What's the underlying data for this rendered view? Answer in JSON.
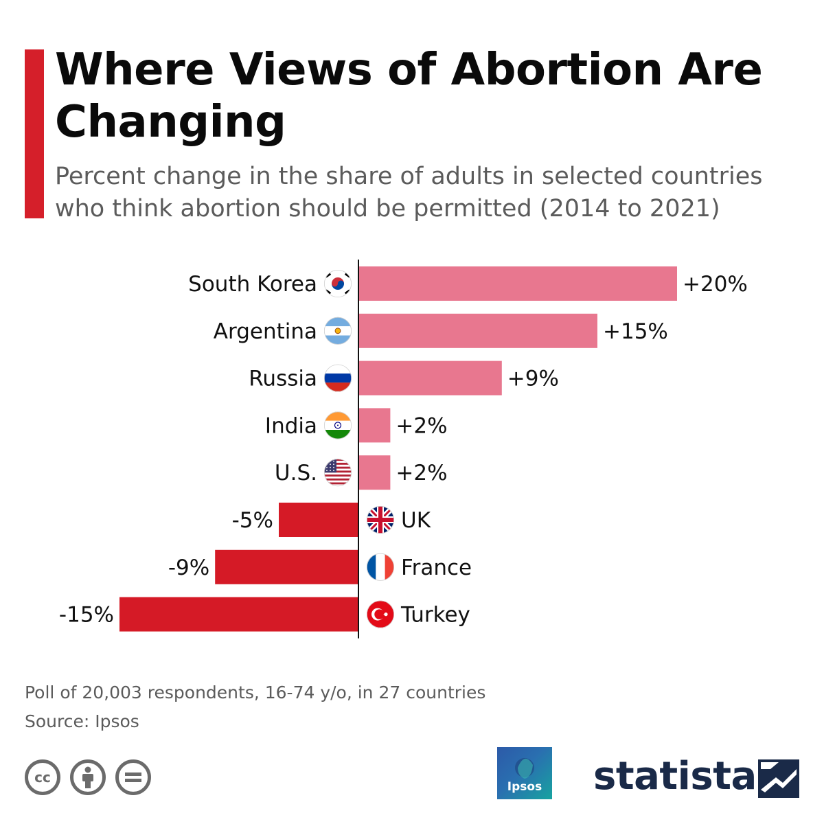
{
  "title": "Where Views of Abortion Are Changing",
  "subtitle": "Percent change in the share of adults in selected countries who think abortion should be permitted (2014 to 2021)",
  "chart_data": {
    "type": "bar",
    "orientation": "horizontal",
    "categories": [
      "South Korea",
      "Argentina",
      "Russia",
      "India",
      "U.S.",
      "UK",
      "France",
      "Turkey"
    ],
    "values": [
      20,
      15,
      9,
      2,
      2,
      -5,
      -9,
      -15
    ],
    "value_labels": [
      "+20%",
      "+15%",
      "+9%",
      "+2%",
      "+2%",
      "-5%",
      "-9%",
      "-15%"
    ],
    "flag_icons": [
      "south-korea-flag-icon",
      "argentina-flag-icon",
      "russia-flag-icon",
      "india-flag-icon",
      "us-flag-icon",
      "uk-flag-icon",
      "france-flag-icon",
      "turkey-flag-icon"
    ],
    "xlim": [
      -15,
      20
    ],
    "grid": false,
    "positive_color": "#e8778f",
    "negative_color": "#d51a26"
  },
  "footnote": {
    "note": "Poll of 20,003 respondents, 16-74 y/o, in 27 countries",
    "source": "Source: Ipsos"
  },
  "logos": {
    "ipsos": "Ipsos",
    "statista": "statista"
  },
  "license_icons": [
    "cc-icon",
    "attribution-icon",
    "no-derivatives-icon"
  ],
  "accent_color": "#d51f2a"
}
